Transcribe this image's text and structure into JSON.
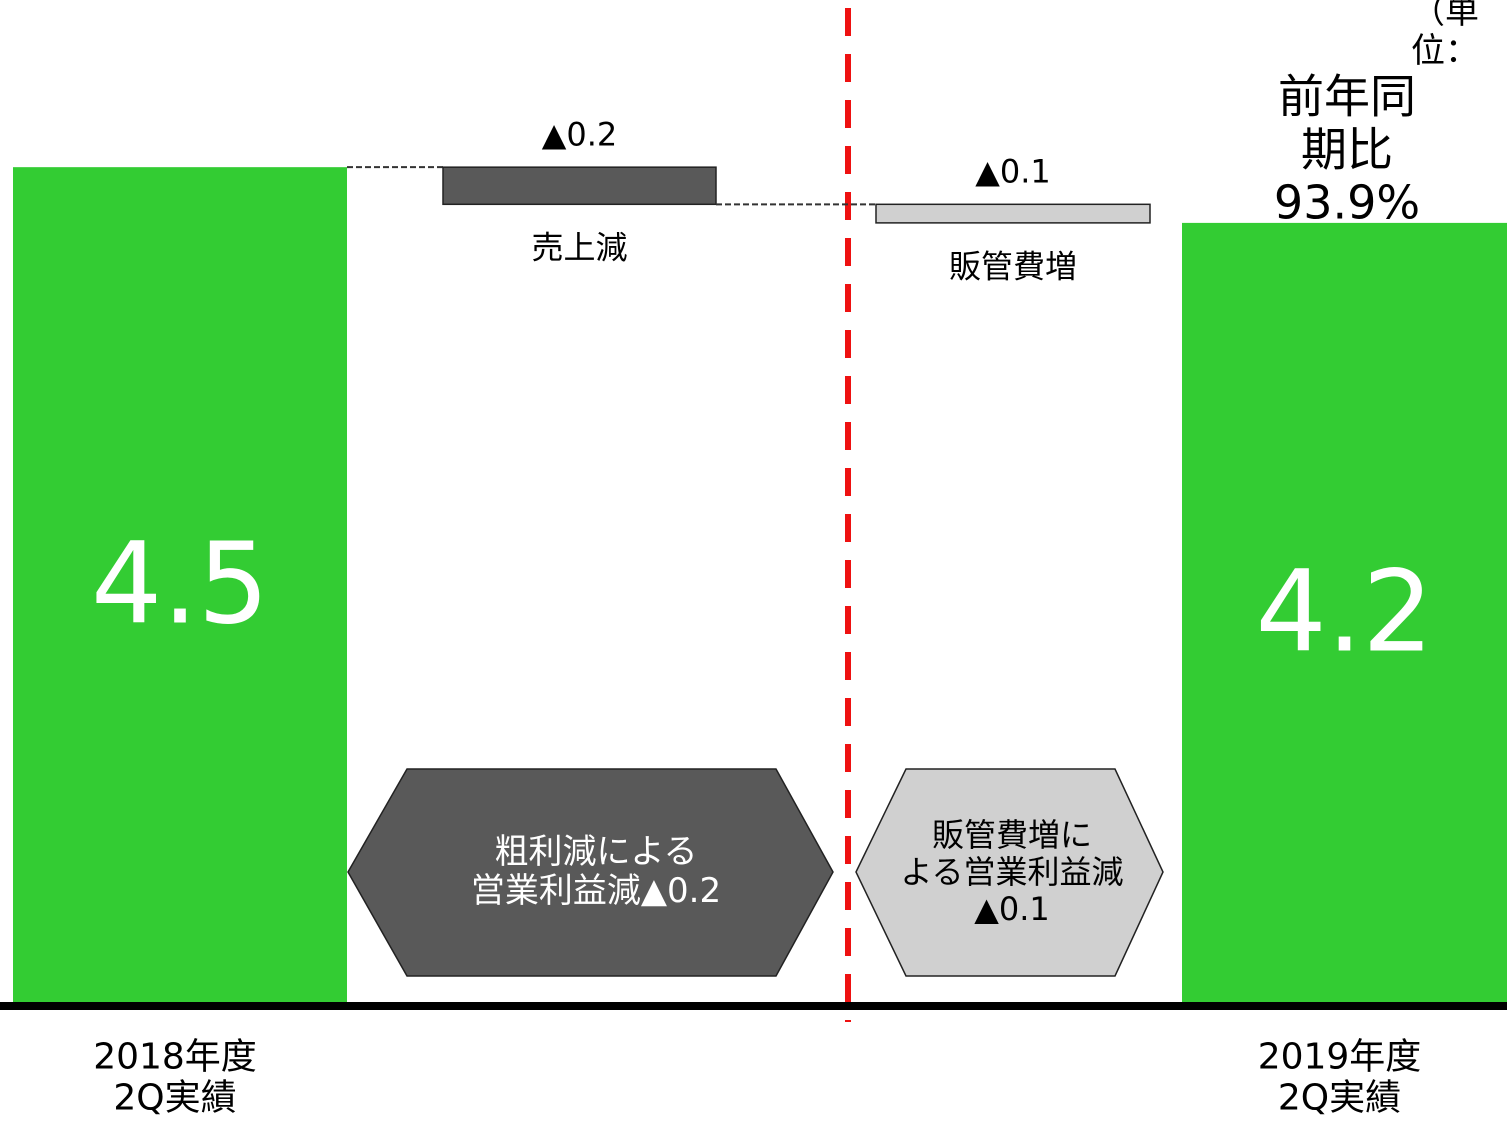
{
  "chart_data": {
    "type": "waterfall",
    "title": "前年同期比\n93.9%",
    "unit_label": "（単位：",
    "categories": [
      "2018年度\n2Q実績",
      "売上減",
      "販管費増",
      "2019年度\n2Q実績"
    ],
    "values": [
      4.5,
      -0.2,
      -0.1,
      4.2
    ],
    "value_labels": [
      "4.5",
      "▲0.2",
      "▲0.1",
      "4.2"
    ],
    "kinds": [
      "total",
      "delta",
      "delta",
      "total"
    ],
    "colors": [
      "#33cc33",
      "#595959",
      "#d0d0d0",
      "#33cc33"
    ],
    "annotations": [
      "粗利減による\n営業利益減▲0.2",
      "販管費増に\nよる営業利益減\n▲0.1"
    ],
    "ylim": [
      0,
      5.4
    ]
  }
}
